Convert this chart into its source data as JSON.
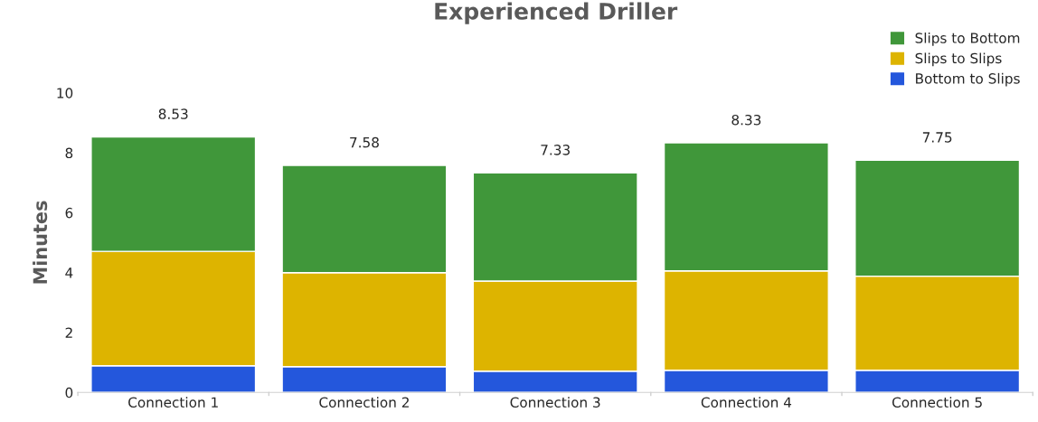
{
  "chart_data": {
    "type": "bar",
    "title": "Experienced Driller",
    "ylabel": "Minutes",
    "stacked": true,
    "categories": [
      "Connection 1",
      "Connection 2",
      "Connection 3",
      "Connection 4",
      "Connection 5"
    ],
    "series": [
      {
        "name": "Bottom to Slips",
        "color": "#2457dc",
        "values": [
          0.89,
          0.86,
          0.71,
          0.74,
          0.74
        ]
      },
      {
        "name": "Slips to Slips",
        "color": "#ddb400",
        "values": [
          3.82,
          3.14,
          3.01,
          3.32,
          3.14
        ]
      },
      {
        "name": "Slips to Bottom",
        "color": "#40973a",
        "values": [
          3.82,
          3.58,
          3.61,
          4.27,
          3.87
        ]
      }
    ],
    "totals": [
      "8.53",
      "7.58",
      "7.33",
      "8.33",
      "7.75"
    ],
    "ylim": [
      0,
      10
    ],
    "yticks": [
      0,
      2,
      4,
      6,
      8,
      10
    ],
    "grid": false,
    "legend": "top right"
  }
}
